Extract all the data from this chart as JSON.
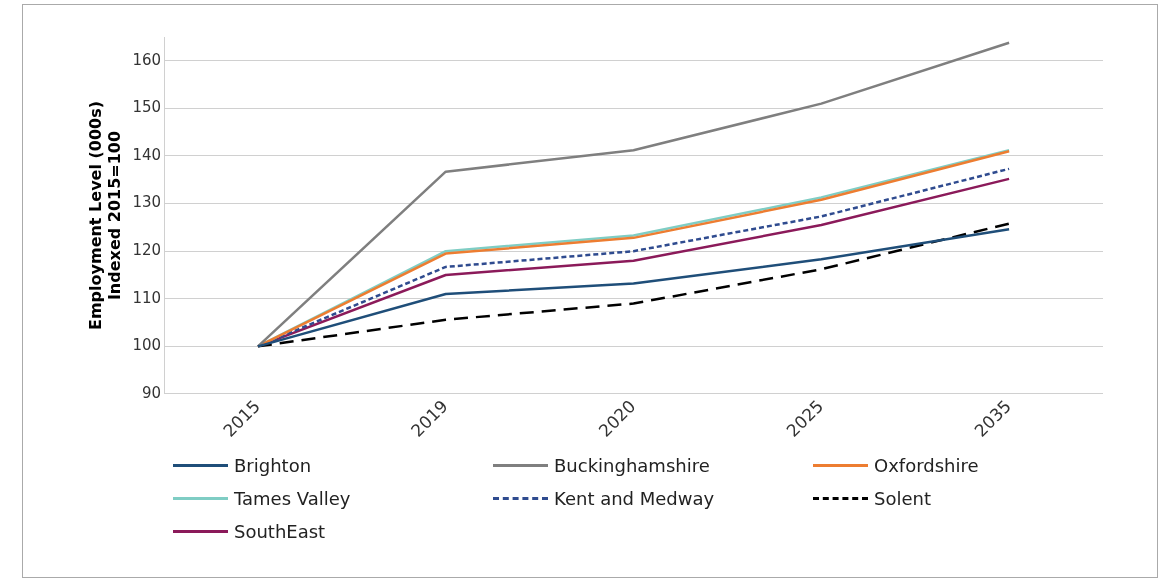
{
  "chart_data": {
    "type": "line",
    "ylabel": "Employment Level (000s)\nIndexed 2015=100",
    "categories": [
      "2015",
      "2019",
      "2020",
      "2025",
      "2035"
    ],
    "ylim": [
      90,
      165
    ],
    "yticks": [
      90,
      100,
      110,
      120,
      130,
      140,
      150,
      160
    ],
    "grid": "y",
    "legend": "bottom",
    "marker": "none",
    "series": [
      {
        "name": "Brighton",
        "color": "#1f4e79",
        "values": [
          100,
          111,
          113.2,
          118.3,
          124.6
        ]
      },
      {
        "name": "Buckinghamshire",
        "color": "#7f7f7f",
        "values": [
          100,
          136.7,
          141.2,
          151,
          163.8
        ]
      },
      {
        "name": "Oxfordshire",
        "color": "#ed7d31",
        "values": [
          100,
          119.5,
          122.8,
          130.8,
          141
        ]
      },
      {
        "name": "Tames Valley",
        "color": "#7fcdc4",
        "values": [
          100,
          120,
          123.3,
          131.3,
          141.2
        ]
      },
      {
        "name": "Kent and Medway",
        "color": "#2f4b8f",
        "values": [
          100,
          116.7,
          120,
          127.3,
          137.3
        ],
        "line_style": "dotted"
      },
      {
        "name": "Solent",
        "color": "#000000",
        "values": [
          100,
          105.6,
          109,
          116.2,
          125.8
        ],
        "line_style": "dashed"
      },
      {
        "name": "SouthEast",
        "color": "#8b1a5a",
        "values": [
          100,
          115,
          118,
          125.5,
          135.2
        ]
      }
    ]
  }
}
